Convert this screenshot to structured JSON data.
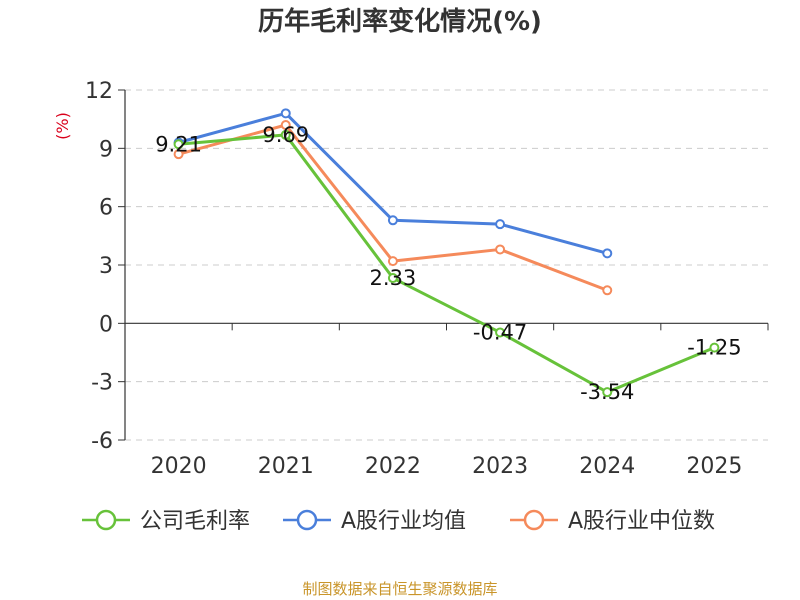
{
  "chart_data": {
    "type": "line",
    "title": "历年毛利率变化情况(%)",
    "ylabel": "(%)",
    "categories": [
      "2020",
      "2021",
      "2022",
      "2023",
      "2024",
      "2025"
    ],
    "ylim": [
      -6,
      12
    ],
    "yticks": [
      12,
      9,
      6,
      3,
      0,
      -3,
      -6
    ],
    "grid": true,
    "legend_position": "bottom",
    "series": [
      {
        "name": "公司毛利率",
        "color": "#67c23a",
        "values": [
          9.21,
          9.69,
          2.33,
          -0.47,
          -3.54,
          -1.25
        ],
        "labels": [
          "9.21",
          "9.69",
          "2.33",
          "-0.47",
          "-3.54",
          "-1.25"
        ]
      },
      {
        "name": "A股行业均值",
        "color": "#4a7fdb",
        "values": [
          9.3,
          10.8,
          5.3,
          5.1,
          3.6,
          null
        ]
      },
      {
        "name": "A股行业中位数",
        "color": "#f58a5b",
        "values": [
          8.7,
          10.2,
          3.2,
          3.8,
          1.7,
          null
        ]
      }
    ],
    "source": "制图数据来自恒生聚源数据库",
    "unit_color": "#d9001b",
    "source_color": "#c9952a"
  }
}
